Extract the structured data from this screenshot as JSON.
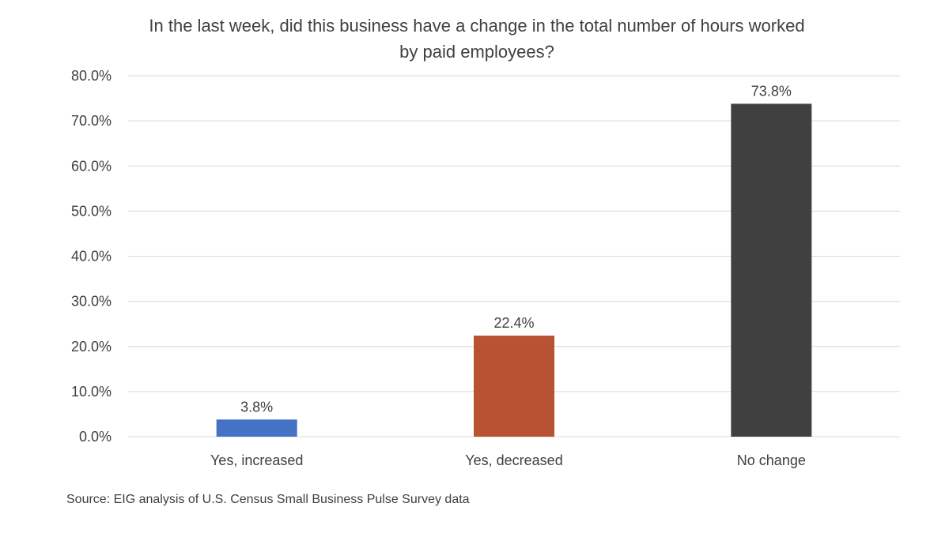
{
  "chart_data": {
    "type": "bar",
    "title_lines": [
      "In the last week, did this business have a change in the total number of hours worked",
      "by paid employees?"
    ],
    "categories": [
      "Yes, increased",
      "Yes, decreased",
      "No change"
    ],
    "values": [
      3.8,
      22.4,
      73.8
    ],
    "data_labels": [
      "3.8%",
      "22.4%",
      "73.8%"
    ],
    "bar_colors": [
      "#4472c4",
      "#b85232",
      "#404040"
    ],
    "ylim": [
      0,
      80
    ],
    "yticks": [
      0,
      10,
      20,
      30,
      40,
      50,
      60,
      70,
      80
    ],
    "ytick_labels": [
      "0.0%",
      "10.0%",
      "20.0%",
      "30.0%",
      "40.0%",
      "50.0%",
      "60.0%",
      "70.0%",
      "80.0%"
    ],
    "xlabel": "",
    "ylabel": "",
    "grid": true,
    "legend": "none"
  },
  "source": "Source: EIG analysis of U.S. Census Small Business Pulse Survey data"
}
